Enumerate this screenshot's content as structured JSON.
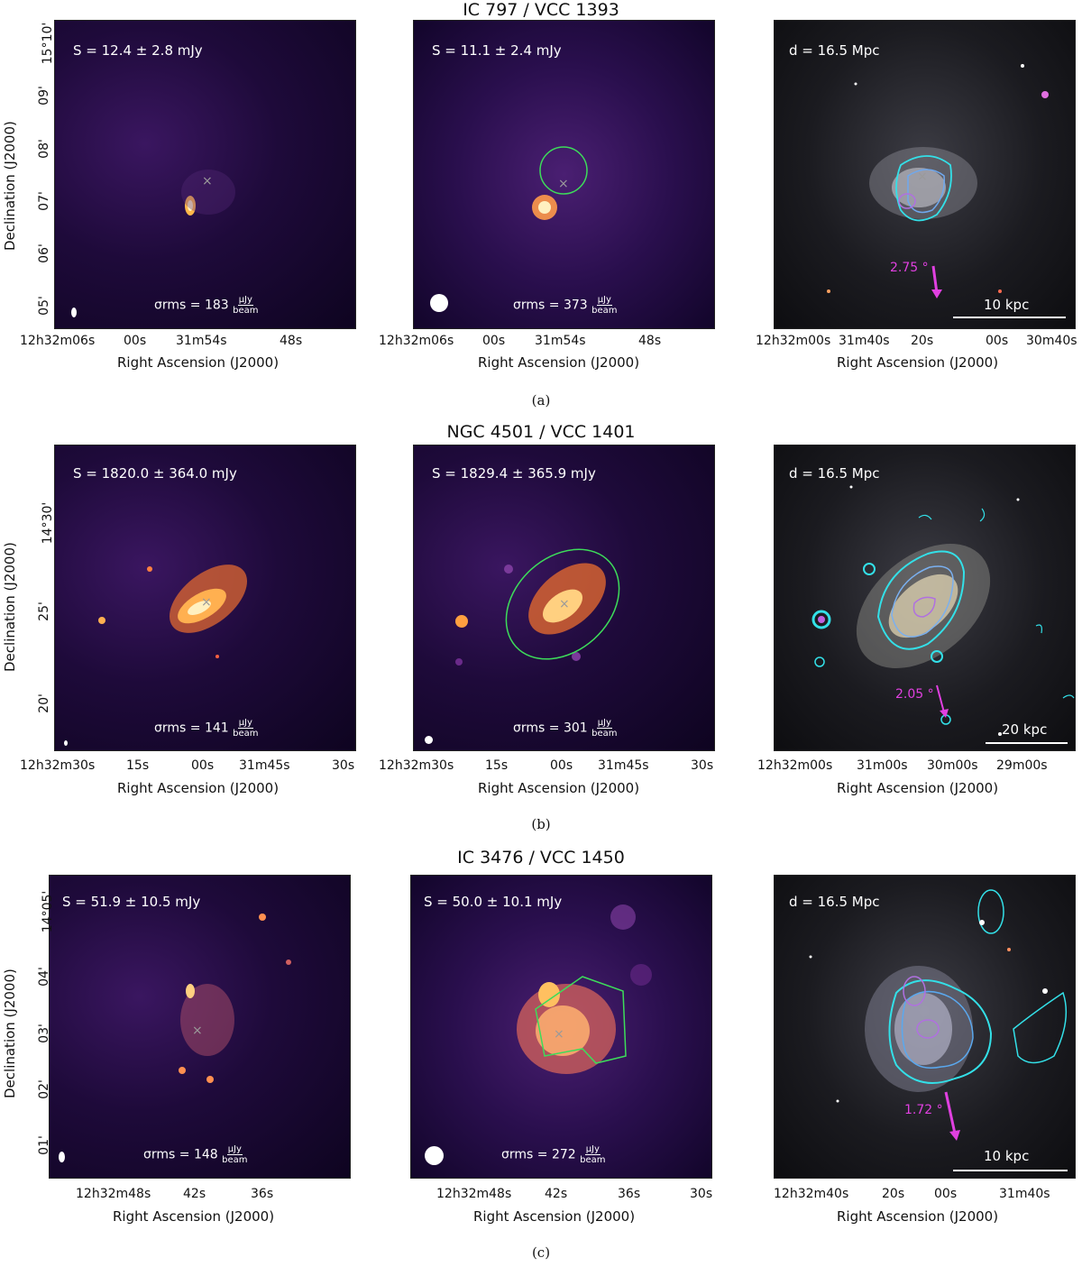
{
  "rows": [
    {
      "title": "IC 797 / VCC 1393",
      "caption": "(a)",
      "flux_left": "S = 12.4 ± 2.8 mJy",
      "flux_mid": "S = 11.1 ± 2.4 mJy",
      "distance": "d = 16.5 Mpc",
      "rms_left": "σrms = 183",
      "rms_mid": "σrms = 373",
      "rms_unit_num": "μJy",
      "rms_unit_den": "beam",
      "arrow_label": "2.75 °",
      "scalebar": "10 kpc",
      "ylabel": "Declination (J2000)",
      "xlabel": "Right Ascension (J2000)",
      "yticks": [
        "15°10'",
        "09'",
        "08'",
        "07'",
        "06'",
        "05'"
      ],
      "xticks_radio": [
        "12h32m06s",
        "00s",
        "31m54s",
        "48s"
      ],
      "xticks_optical": [
        "12h32m00s",
        "31m40s",
        "20s",
        "00s",
        "30m40s"
      ]
    },
    {
      "title": "NGC 4501 / VCC 1401",
      "caption": "(b)",
      "flux_left": "S = 1820.0 ± 364.0 mJy",
      "flux_mid": "S = 1829.4 ± 365.9 mJy",
      "distance": "d = 16.5 Mpc",
      "rms_left": "σrms = 141",
      "rms_mid": "σrms = 301",
      "rms_unit_num": "μJy",
      "rms_unit_den": "beam",
      "arrow_label": "2.05 °",
      "scalebar": "20 kpc",
      "ylabel": "Declination (J2000)",
      "xlabel": "Right Ascension (J2000)",
      "yticks": [
        "14°30'",
        "25'",
        "20'"
      ],
      "xticks_radio": [
        "12h32m30s",
        "15s",
        "00s",
        "31m45s",
        "30s"
      ],
      "xticks_optical": [
        "12h32m00s",
        "31m00s",
        "30m00s",
        "29m00s"
      ]
    },
    {
      "title": "IC 3476 / VCC 1450",
      "caption": "(c)",
      "flux_left": "S = 51.9 ± 10.5 mJy",
      "flux_mid": "S = 50.0 ± 10.1 mJy",
      "distance": "d = 16.5 Mpc",
      "rms_left": "σrms = 148",
      "rms_mid": "σrms = 272",
      "rms_unit_num": "μJy",
      "rms_unit_den": "beam",
      "arrow_label": "1.72 °",
      "scalebar": "10 kpc",
      "ylabel": "Declination (J2000)",
      "xlabel": "Right Ascension (J2000)",
      "yticks": [
        "14°05'",
        "04'",
        "03'",
        "02'",
        "01'"
      ],
      "xticks_radio": [
        "12h32m48s",
        "42s",
        "36s"
      ],
      "xticks_radio_mid": [
        "12h32m48s",
        "42s",
        "36s",
        "30s"
      ],
      "xticks_optical": [
        "12h32m40s",
        "20s",
        "00s",
        "31m40s"
      ]
    }
  ],
  "colors": {
    "contour": "#33e0e8",
    "inner_contour": "#b070e0",
    "aperture": "#3ddc5a",
    "arrow": "#e040e0",
    "marker": "#9a9a9a"
  }
}
